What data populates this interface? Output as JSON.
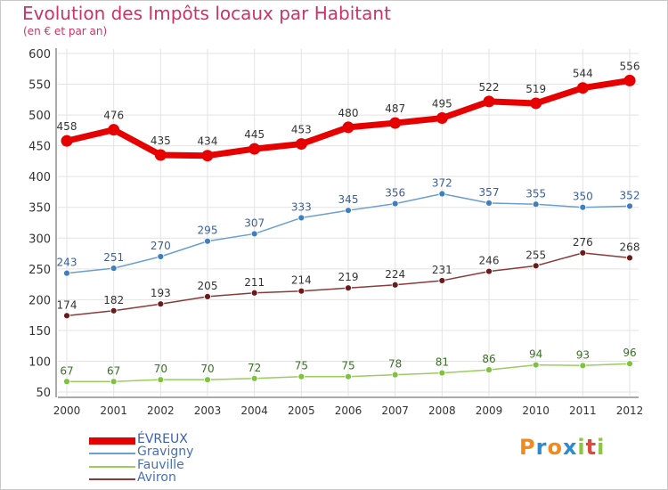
{
  "header": {
    "title": "Evolution des Impôts locaux par Habitant",
    "subtitle": "(en € et par an)"
  },
  "logo": {
    "text": "Proxiti",
    "letters": [
      "P",
      "r",
      "o",
      "x",
      "i",
      "t",
      "i"
    ],
    "colors": [
      "#f08a1c",
      "#2d8ccf",
      "#f08a1c",
      "#2d8ccf",
      "#8cc63f",
      "#e0483a",
      "#8cc63f"
    ]
  },
  "chart_data": {
    "type": "line",
    "x": [
      "2000",
      "2001",
      "2002",
      "2003",
      "2004",
      "2005",
      "2006",
      "2007",
      "2008",
      "2009",
      "2010",
      "2011",
      "2012"
    ],
    "ylim": [
      50,
      600
    ],
    "yticks": [
      50,
      100,
      150,
      200,
      250,
      300,
      350,
      400,
      450,
      500,
      550,
      600
    ],
    "grid": true,
    "legend_position": "bottom-left",
    "series": [
      {
        "name": "ÉVREUX",
        "color": "#e60000",
        "line_width": 7,
        "marker_radius": 6.5,
        "label_color": "#333333",
        "values": [
          458,
          476,
          435,
          434,
          445,
          453,
          480,
          487,
          495,
          522,
          519,
          544,
          556
        ]
      },
      {
        "name": "Gravigny",
        "color": "#6b9fd1",
        "line_width": 1.5,
        "marker_radius": 3.5,
        "marker_color": "#3f7fc0",
        "label_color": "#3a5f9e",
        "values": [
          243,
          251,
          270,
          295,
          307,
          333,
          345,
          356,
          372,
          357,
          355,
          350,
          352
        ]
      },
      {
        "name": "Fauville",
        "color": "#9acd5e",
        "line_width": 1.5,
        "marker_radius": 3.5,
        "marker_color": "#7fc241",
        "label_color": "#3a6f2a",
        "values": [
          67,
          67,
          70,
          70,
          72,
          75,
          75,
          78,
          81,
          86,
          94,
          93,
          96
        ]
      },
      {
        "name": "Aviron",
        "color": "#8b3a3a",
        "line_width": 1.5,
        "marker_radius": 3.5,
        "marker_color": "#6a1a1a",
        "label_color": "#333333",
        "values": [
          174,
          182,
          193,
          205,
          211,
          214,
          219,
          224,
          231,
          246,
          255,
          276,
          268
        ]
      }
    ]
  }
}
